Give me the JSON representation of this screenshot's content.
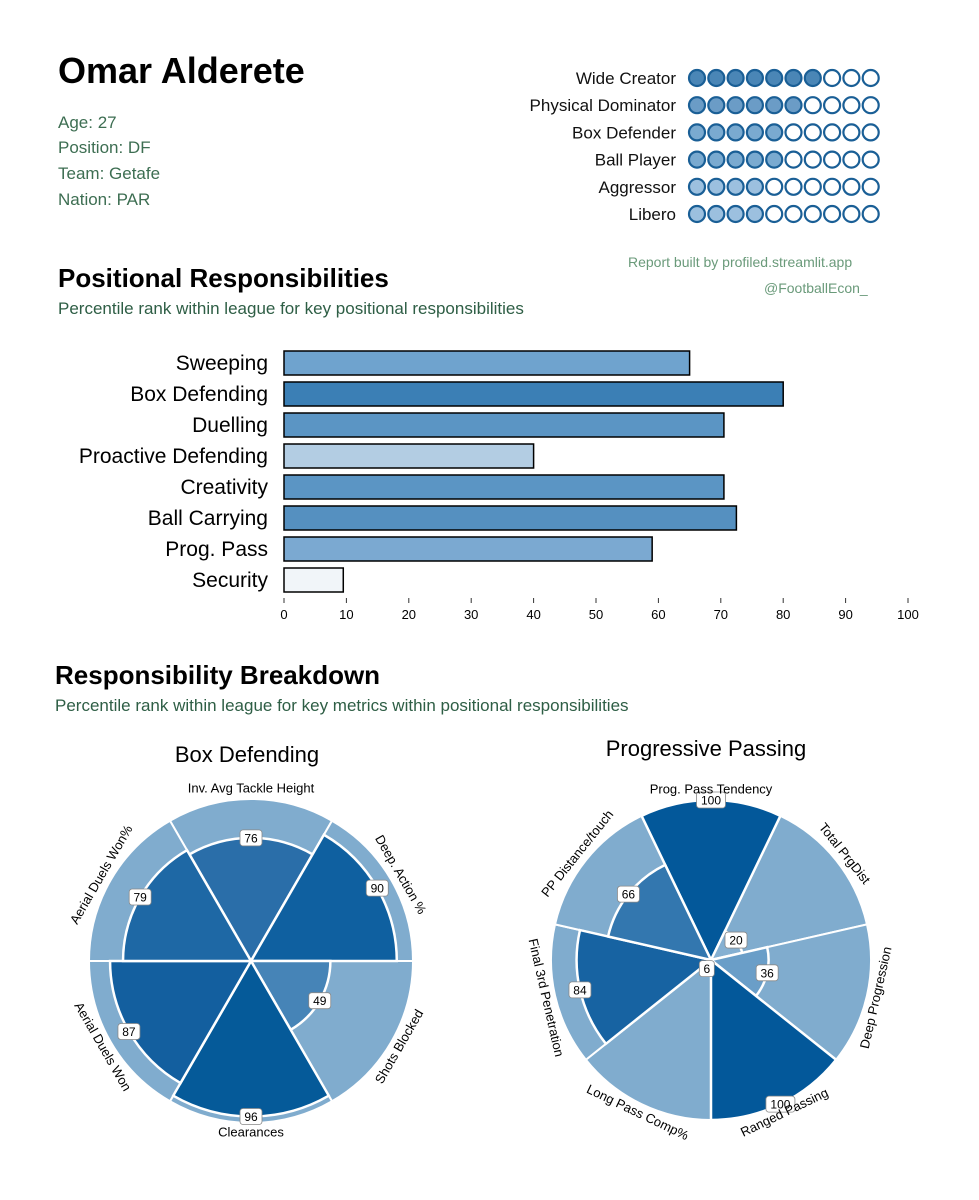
{
  "player": {
    "name": "Omar Alderete",
    "age": "Age: 27",
    "position": "Position: DF",
    "team": "Team: Getafe",
    "nation": "Nation: PAR"
  },
  "credits": {
    "report": "Report built by profiled.streamlit.app",
    "handle": "@FootballEcon_"
  },
  "sections": {
    "positional_title": "Positional Responsibilities",
    "positional_subtitle": "Percentile rank within league for key positional responsibilities",
    "breakdown_title": "Responsibility Breakdown",
    "breakdown_subtitle": "Percentile rank within league for key metrics within positional responsibilities"
  },
  "chart_data": [
    {
      "type": "dot-rating",
      "max": 10,
      "categories": [
        "Wide Creator",
        "Physical Dominator",
        "Box Defender",
        "Ball Player",
        "Aggressor",
        "Libero"
      ],
      "values": [
        7,
        6,
        5,
        5,
        4,
        4
      ],
      "colors": [
        "#4a86b6",
        "#6b9cc6",
        "#7aaad0",
        "#7aaad0",
        "#9cc0df",
        "#9cc0df"
      ]
    },
    {
      "type": "bar",
      "orientation": "horizontal",
      "categories": [
        "Sweeping",
        "Box Defending",
        "Duelling",
        "Proactive Defending",
        "Creativity",
        "Ball Carrying",
        "Prog. Pass",
        "Security"
      ],
      "values": [
        65,
        80,
        70.5,
        40,
        70.5,
        72.5,
        59,
        9.5
      ],
      "colors": [
        "#6fa3ce",
        "#3b7fb5",
        "#5b95c4",
        "#b3cde3",
        "#5b95c4",
        "#5590c0",
        "#7ba9d1",
        "#f1f5f9"
      ],
      "xlim": [
        0,
        100
      ],
      "xticks": [
        "0",
        "10",
        "20",
        "30",
        "40",
        "50",
        "60",
        "70",
        "80",
        "90",
        "100"
      ]
    },
    {
      "type": "polar-bar",
      "title": "Box Defending",
      "categories": [
        "Inv. Avg Tackle Height",
        "Deep. Action %",
        "Shots Blocked",
        "Clearances",
        "Aerial Duels Won",
        "Aerial Duels Won%"
      ],
      "values": [
        76,
        90,
        49,
        96,
        87,
        79
      ],
      "colors": [
        "#2a6ea9",
        "#0f60a0",
        "#4684b7",
        "#055a99",
        "#135f9f",
        "#1e68a5"
      ],
      "background_color": "#80acce",
      "rmax": 100
    },
    {
      "type": "polar-bar",
      "title": "Progressive Passing",
      "categories": [
        "Prog. Pass Tendency",
        "Total PrgDist",
        "Deep Progression",
        "Ranged Passing",
        "Long Pass Comp%",
        "Final 3rd Penetration",
        "PP Distance/touch"
      ],
      "values": [
        100,
        20,
        36,
        100,
        6,
        84,
        66
      ],
      "colors": [
        "#03589a",
        "#85b0d2",
        "#6a9ec8",
        "#03589a",
        "#d8e7f3",
        "#1763a2",
        "#3377af"
      ],
      "background_color": "#80acce",
      "rmax": 100
    }
  ]
}
